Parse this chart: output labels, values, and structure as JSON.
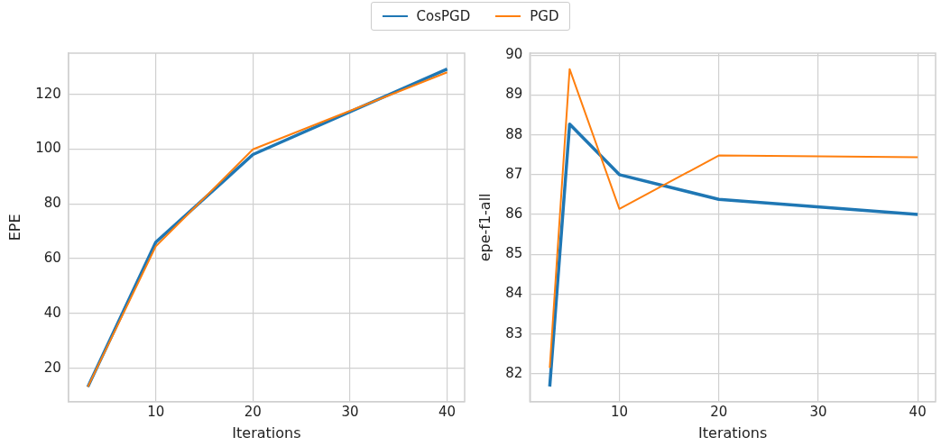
{
  "chart_data": [
    {
      "type": "line",
      "xlabel": "Iterations",
      "ylabel": "EPE",
      "xlim": [
        1,
        41.8
      ],
      "xticks": [
        10,
        20,
        30,
        40
      ],
      "ylim": [
        7.8,
        135
      ],
      "yticks": [
        20,
        40,
        60,
        80,
        100,
        120
      ],
      "grid": true,
      "legend": "top",
      "x": [
        3,
        10,
        20,
        40
      ],
      "series": [
        {
          "name": "CosPGD",
          "color": "#1f77b4",
          "values": [
            13.2,
            66,
            98,
            129.2
          ]
        },
        {
          "name": "PGD",
          "color": "#ff7f0e",
          "values": [
            13.2,
            64.5,
            99.9,
            128
          ]
        }
      ]
    },
    {
      "type": "line",
      "xlabel": "Iterations",
      "ylabel": "epe-f1-all",
      "xlim": [
        1,
        41.8
      ],
      "xticks": [
        10,
        20,
        30,
        40
      ],
      "ylim": [
        81.3,
        90.05
      ],
      "yticks": [
        82,
        83,
        84,
        85,
        86,
        87,
        88,
        89,
        90
      ],
      "grid": true,
      "legend": "top",
      "x": [
        3,
        5,
        10,
        20,
        40
      ],
      "series": [
        {
          "name": "CosPGD",
          "color": "#1f77b4",
          "values": [
            81.68,
            88.27,
            87.0,
            86.38,
            86.0
          ]
        },
        {
          "name": "PGD",
          "color": "#ff7f0e",
          "values": [
            82.15,
            89.65,
            86.14,
            87.48,
            87.44
          ]
        }
      ]
    }
  ]
}
